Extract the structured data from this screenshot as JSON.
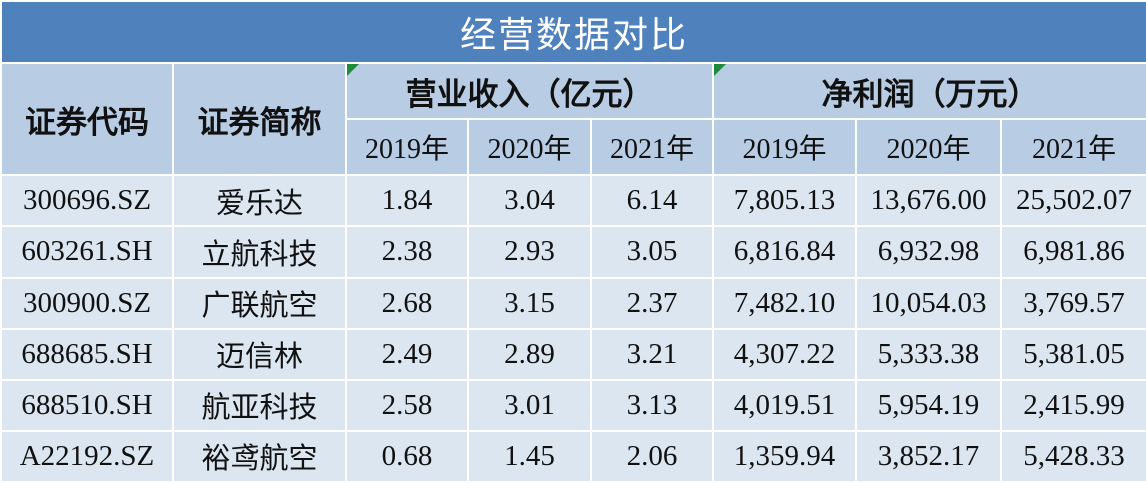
{
  "title": "经营数据对比",
  "header": {
    "code": "证券代码",
    "name": "证券简称",
    "groups": [
      {
        "label": "营业收入（亿元）",
        "years": [
          "2019年",
          "2020年",
          "2021年"
        ]
      },
      {
        "label": "净利润（万元）",
        "years": [
          "2019年",
          "2020年",
          "2021年"
        ]
      }
    ]
  },
  "table": {
    "rows": [
      [
        "300696.SZ",
        "爱乐达",
        "1.84",
        "3.04",
        "6.14",
        "7,805.13",
        "13,676.00",
        "25,502.07"
      ],
      [
        "603261.SH",
        "立航科技",
        "2.38",
        "2.93",
        "3.05",
        "6,816.84",
        "6,932.98",
        "6,981.86"
      ],
      [
        "300900.SZ",
        "广联航空",
        "2.68",
        "3.15",
        "2.37",
        "7,482.10",
        "10,054.03",
        "3,769.57"
      ],
      [
        "688685.SH",
        "迈信林",
        "2.49",
        "2.89",
        "3.21",
        "4,307.22",
        "5,333.38",
        "5,381.05"
      ],
      [
        "688510.SH",
        "航亚科技",
        "2.58",
        "3.01",
        "3.13",
        "4,019.51",
        "5,954.19",
        "2,415.99"
      ],
      [
        "A22192.SZ",
        "裕鸢航空",
        "0.68",
        "1.45",
        "2.06",
        "1,359.94",
        "3,852.17",
        "5,428.33"
      ]
    ]
  }
}
